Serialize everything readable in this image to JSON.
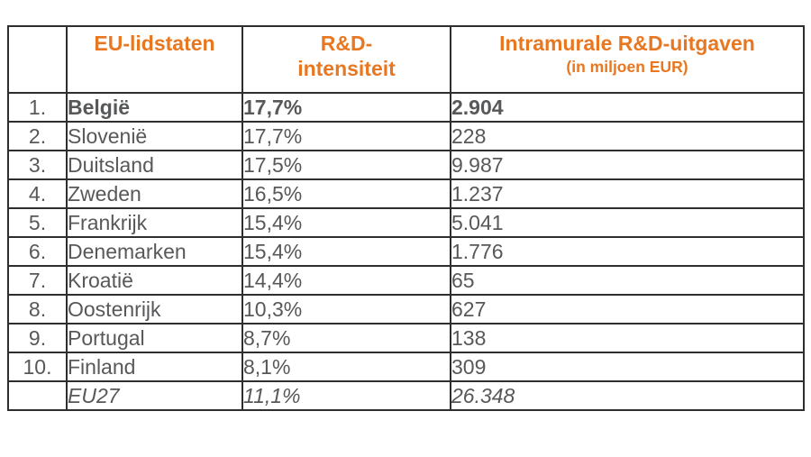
{
  "colors": {
    "header_text": "#e87722",
    "body_text": "#57585a",
    "border": "#2e2e2e",
    "background": "#ffffff"
  },
  "header": {
    "rank": "",
    "country": "EU-lidstaten",
    "intensity_line1": "R&D-",
    "intensity_line2": "intensiteit",
    "expenditure_line1": "Intramurale R&D-uitgaven",
    "expenditure_line2": "(in miljoen EUR)"
  },
  "rows": [
    {
      "rank": "1.",
      "country": "België",
      "intensity": "17,7%",
      "expenditure": "2.904"
    },
    {
      "rank": "2.",
      "country": "Slovenië",
      "intensity": "17,7%",
      "expenditure": "228"
    },
    {
      "rank": "3.",
      "country": "Duitsland",
      "intensity": "17,5%",
      "expenditure": "9.987"
    },
    {
      "rank": "4.",
      "country": "Zweden",
      "intensity": "16,5%",
      "expenditure": "1.237"
    },
    {
      "rank": "5.",
      "country": "Frankrijk",
      "intensity": "15,4%",
      "expenditure": "5.041"
    },
    {
      "rank": "6.",
      "country": "Denemarken",
      "intensity": "15,4%",
      "expenditure": "1.776"
    },
    {
      "rank": "7.",
      "country": "Kroatië",
      "intensity": "14,4%",
      "expenditure": "65"
    },
    {
      "rank": "8.",
      "country": "Oostenrijk",
      "intensity": "10,3%",
      "expenditure": "627"
    },
    {
      "rank": "9.",
      "country": "Portugal",
      "intensity": "8,7%",
      "expenditure": "138"
    },
    {
      "rank": "10.",
      "country": "Finland",
      "intensity": "8,1%",
      "expenditure": "309"
    },
    {
      "rank": "",
      "country": "EU27",
      "intensity": "11,1%",
      "expenditure": "26.348"
    }
  ],
  "chart_data": {
    "type": "table",
    "title": "",
    "columns": [
      "",
      "EU-lidstaten",
      "R&D-intensiteit",
      "Intramurale R&D-uitgaven (in miljoen EUR)"
    ],
    "rows": [
      [
        "1.",
        "België",
        "17,7%",
        "2.904"
      ],
      [
        "2.",
        "Slovenië",
        "17,7%",
        "228"
      ],
      [
        "3.",
        "Duitsland",
        "17,5%",
        "9.987"
      ],
      [
        "4.",
        "Zweden",
        "16,5%",
        "1.237"
      ],
      [
        "5.",
        "Frankrijk",
        "15,4%",
        "5.041"
      ],
      [
        "6.",
        "Denemarken",
        "15,4%",
        "1.776"
      ],
      [
        "7.",
        "Kroatië",
        "14,4%",
        "65"
      ],
      [
        "8.",
        "Oostenrijk",
        "10,3%",
        "627"
      ],
      [
        "9.",
        "Portugal",
        "8,7%",
        "138"
      ],
      [
        "10.",
        "Finland",
        "8,1%",
        "309"
      ],
      [
        "",
        "EU27",
        "11,1%",
        "26.348"
      ]
    ],
    "series": [
      {
        "name": "R&D-intensiteit (%)",
        "values": [
          17.7,
          17.7,
          17.5,
          16.5,
          15.4,
          15.4,
          14.4,
          10.3,
          8.7,
          8.1,
          11.1
        ]
      },
      {
        "name": "Intramurale R&D-uitgaven (miljoen EUR)",
        "values": [
          2904,
          228,
          9987,
          1237,
          5041,
          1776,
          65,
          627,
          138,
          309,
          26348
        ]
      }
    ],
    "categories": [
      "België",
      "Slovenië",
      "Duitsland",
      "Zweden",
      "Frankrijk",
      "Denemarken",
      "Kroatië",
      "Oostenrijk",
      "Portugal",
      "Finland",
      "EU27"
    ]
  }
}
